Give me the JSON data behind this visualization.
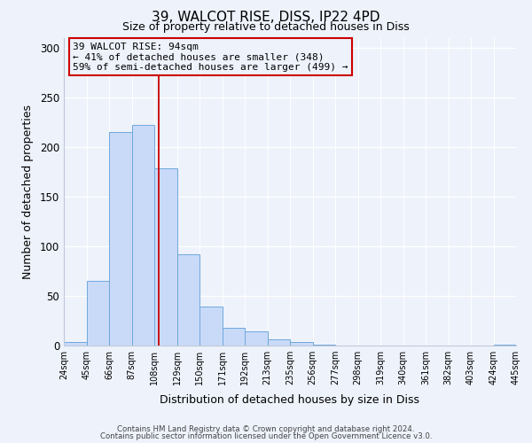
{
  "title": "39, WALCOT RISE, DISS, IP22 4PD",
  "subtitle": "Size of property relative to detached houses in Diss",
  "xlabel": "Distribution of detached houses by size in Diss",
  "ylabel": "Number of detached properties",
  "bar_values": [
    4,
    65,
    215,
    222,
    178,
    92,
    39,
    18,
    14,
    6,
    4,
    1,
    0,
    0,
    0,
    0,
    0,
    0,
    0,
    1
  ],
  "bar_labels": [
    "24sqm",
    "45sqm",
    "66sqm",
    "87sqm",
    "108sqm",
    "129sqm",
    "150sqm",
    "171sqm",
    "192sqm",
    "213sqm",
    "235sqm",
    "256sqm",
    "277sqm",
    "298sqm",
    "319sqm",
    "340sqm",
    "361sqm",
    "382sqm",
    "403sqm",
    "424sqm",
    "445sqm"
  ],
  "bar_color": "#c9daf8",
  "bar_edge_color": "#6fa8dc",
  "ylim": [
    0,
    310
  ],
  "yticks": [
    0,
    50,
    100,
    150,
    200,
    250,
    300
  ],
  "vline_x": 3.7,
  "vline_color": "#cc0000",
  "annotation_title": "39 WALCOT RISE: 94sqm",
  "annotation_line1": "← 41% of detached houses are smaller (348)",
  "annotation_line2": "59% of semi-detached houses are larger (499) →",
  "annotation_box_color": "#cc0000",
  "footer_line1": "Contains HM Land Registry data © Crown copyright and database right 2024.",
  "footer_line2": "Contains public sector information licensed under the Open Government Licence v3.0.",
  "background_color": "#edf2fb",
  "grid_color": "#ffffff",
  "spine_color": "#c0c8d8"
}
